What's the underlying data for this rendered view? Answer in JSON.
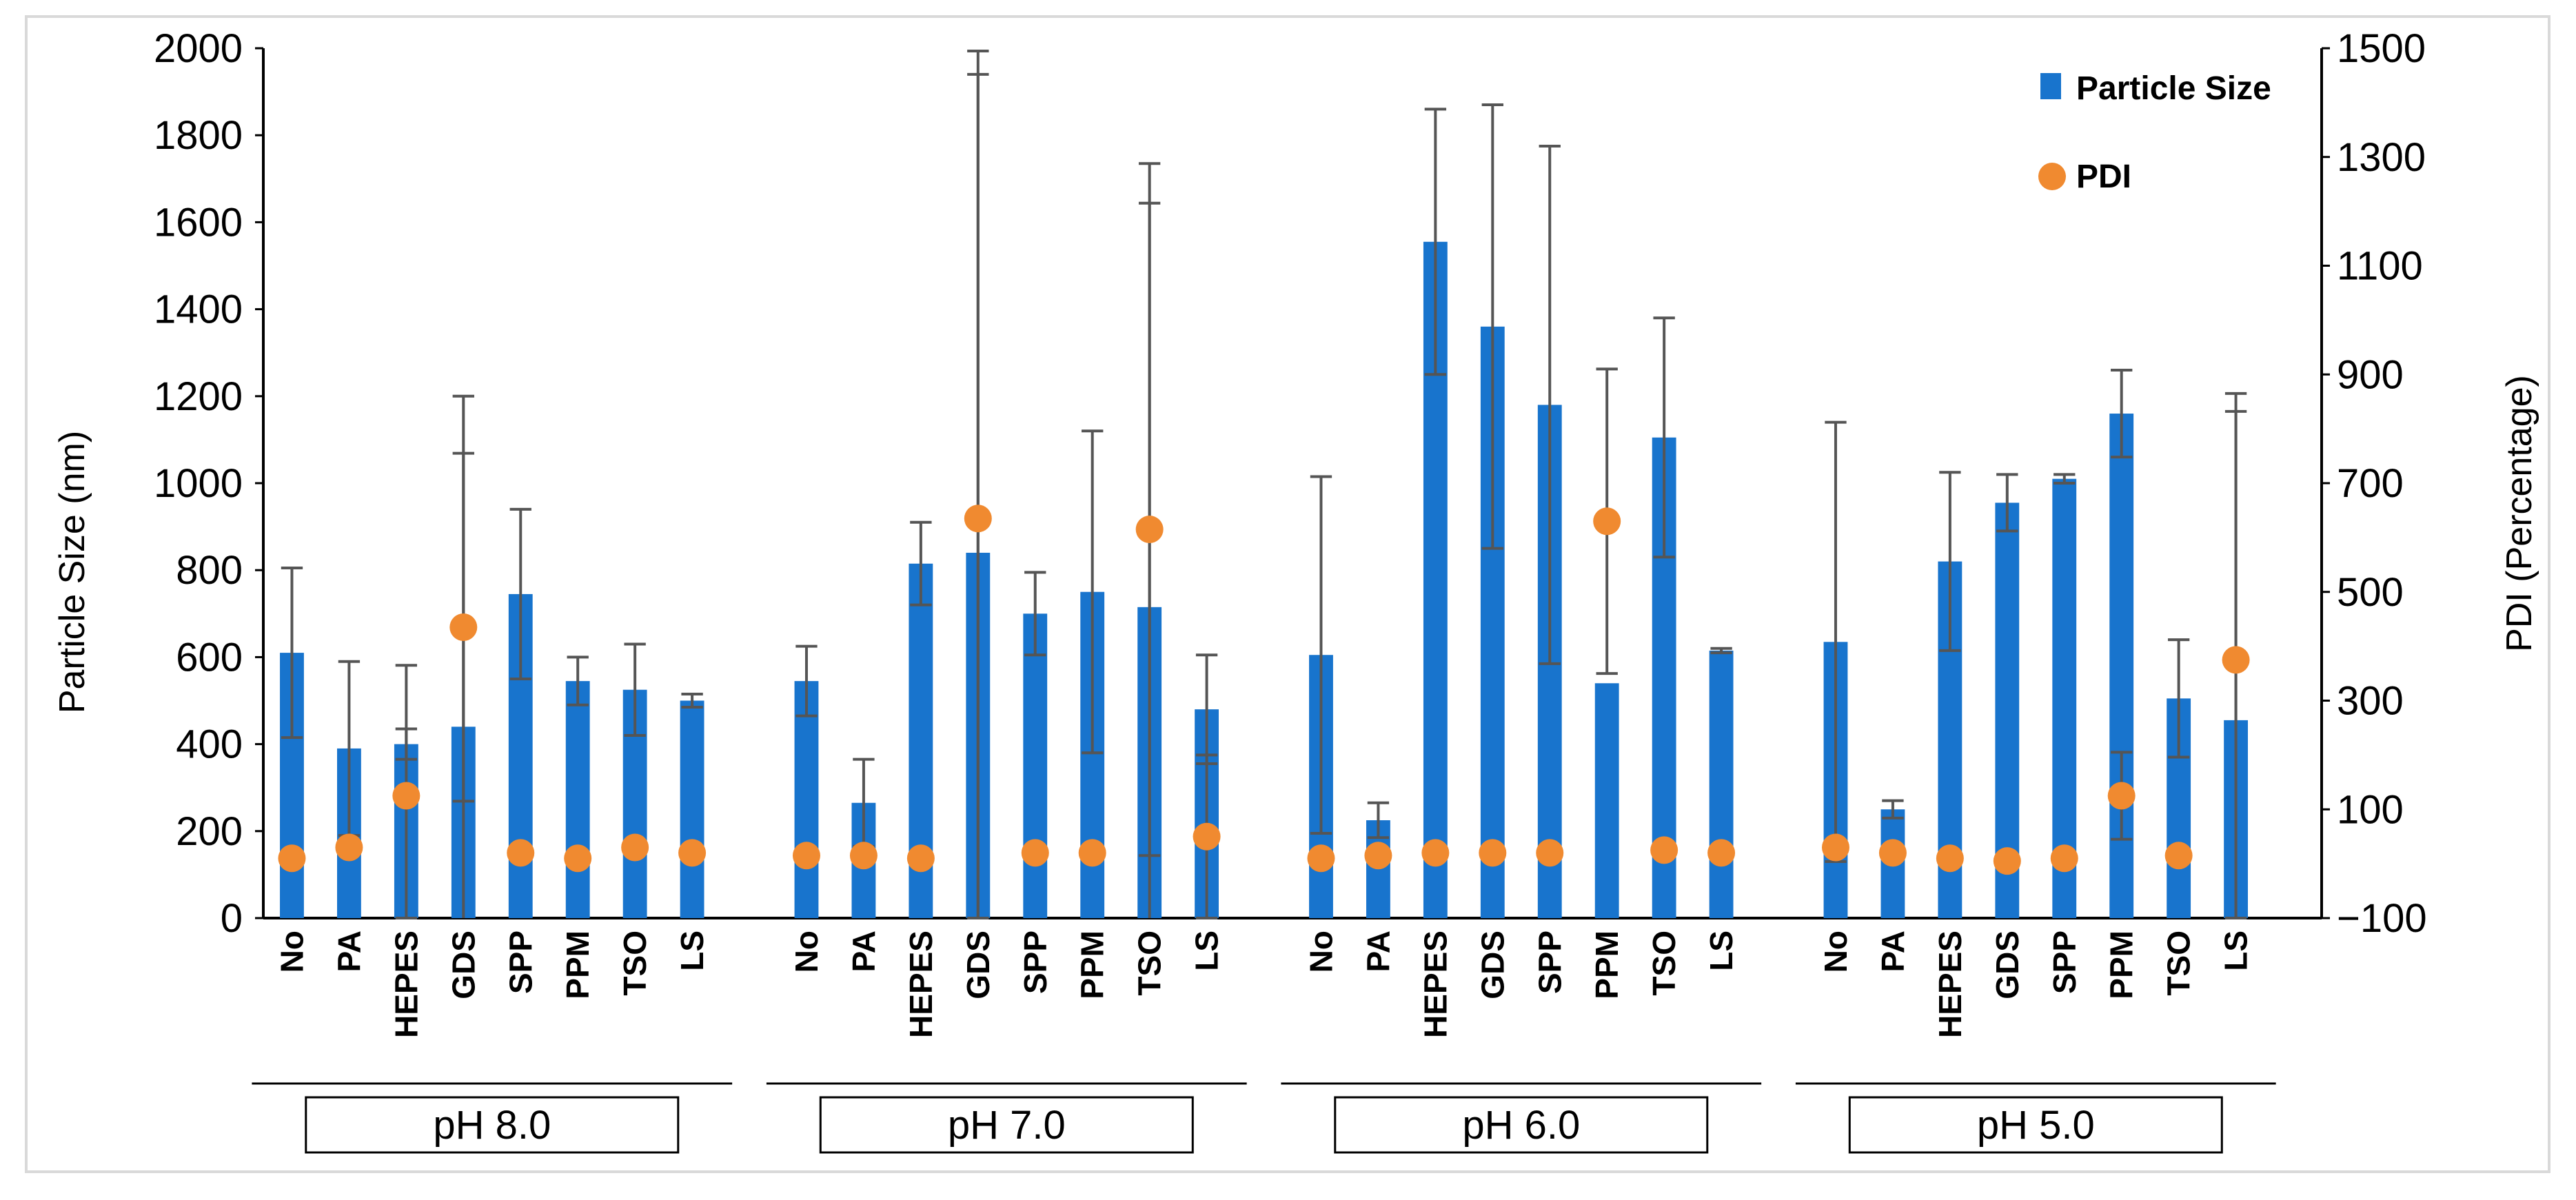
{
  "chart_data": {
    "type": "bar",
    "title": "",
    "xlabel": "",
    "ylabel": "Particle Size (nm)",
    "y2label": "PDI (Percentage)",
    "ylim": [
      0,
      2000
    ],
    "y2lim": [
      -100,
      1500
    ],
    "yticks": [
      0,
      200,
      400,
      600,
      800,
      1000,
      1200,
      1400,
      1600,
      1800,
      2000
    ],
    "y2ticks": [
      -100,
      100,
      300,
      500,
      700,
      900,
      1100,
      1300,
      1500
    ],
    "y2tick_labels": [
      "−100",
      "100",
      "300",
      "500",
      "700",
      "900",
      "1100",
      "1300",
      "1500"
    ],
    "legend": {
      "position": "top-right",
      "entries": [
        "Particle Size",
        "PDI"
      ]
    },
    "colors": {
      "bar": "#1874cd",
      "pdi": "#f08a30",
      "error": "#555555",
      "axis": "#000000",
      "frame": "#d9d9d9"
    },
    "categories": [
      "No",
      "PA",
      "HEPES",
      "GDS",
      "SPP",
      "PPM",
      "TSO",
      "LS"
    ],
    "groups": [
      {
        "label": "pH 8.0",
        "size": [
          610,
          390,
          400,
          440,
          745,
          545,
          525,
          500
        ],
        "size_err": [
          195,
          200,
          35,
          760,
          195,
          55,
          105,
          15
        ],
        "pdi": [
          10,
          30,
          125,
          435,
          20,
          10,
          30,
          20
        ],
        "pdi_err": [
          0,
          0,
          240,
          320,
          0,
          0,
          0,
          0
        ]
      },
      {
        "label": "pH 7.0",
        "size": [
          545,
          265,
          815,
          840,
          700,
          750,
          715,
          480
        ],
        "size_err": [
          80,
          100,
          95,
          1100,
          95,
          370,
          1020,
          125
        ],
        "pdi": [
          15,
          15,
          10,
          635,
          20,
          20,
          615,
          50
        ],
        "pdi_err": [
          0,
          0,
          0,
          860,
          0,
          0,
          600,
          150
        ]
      },
      {
        "label": "pH 6.0",
        "size": [
          605,
          225,
          1555,
          1360,
          1180,
          540,
          1105,
          615
        ],
        "size_err": [
          410,
          40,
          305,
          510,
          595,
          0,
          275,
          5
        ],
        "pdi": [
          10,
          15,
          20,
          20,
          20,
          630,
          25,
          20
        ],
        "pdi_err": [
          0,
          0,
          0,
          0,
          0,
          280,
          0,
          0
        ]
      },
      {
        "label": "pH 5.0",
        "size": [
          635,
          250,
          820,
          955,
          1010,
          1160,
          505,
          455
        ],
        "size_err": [
          505,
          20,
          205,
          65,
          10,
          100,
          135,
          710
        ],
        "pdi": [
          30,
          20,
          10,
          5,
          10,
          125,
          15,
          375
        ],
        "pdi_err": [
          0,
          0,
          0,
          0,
          0,
          80,
          0,
          490
        ]
      }
    ]
  }
}
